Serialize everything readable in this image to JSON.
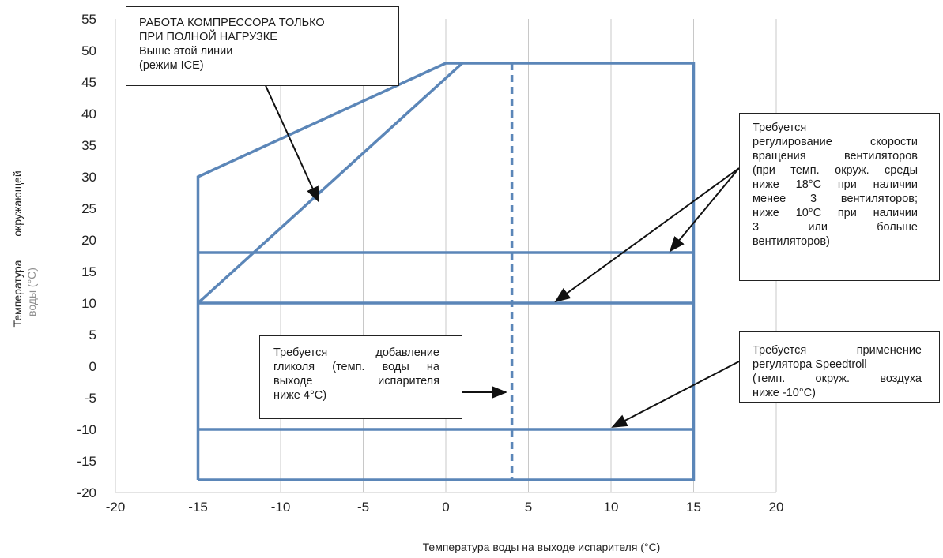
{
  "chart_data": {
    "type": "line",
    "xlabel": "Температура воды на выходе испарителя (°C)",
    "ylabel_lines": [
      "окружающей",
      "Температура",
      "воды (°C)"
    ],
    "xlim": [
      -20,
      20
    ],
    "ylim": [
      -20,
      55
    ],
    "xticks": [
      -20,
      -15,
      -10,
      -5,
      0,
      5,
      10,
      15,
      20
    ],
    "yticks": [
      55,
      50,
      45,
      40,
      35,
      30,
      25,
      20,
      15,
      10,
      5,
      0,
      -5,
      -10,
      -15,
      -20
    ],
    "series": [
      {
        "points": [
          [
            -15,
            -18
          ],
          [
            -15,
            30
          ],
          [
            0,
            48
          ],
          [
            15,
            48
          ],
          [
            15,
            -18
          ],
          [
            -15,
            -18
          ]
        ],
        "style": "solid"
      },
      {
        "points": [
          [
            -15,
            10
          ],
          [
            1,
            48
          ]
        ],
        "style": "solid"
      },
      {
        "points": [
          [
            -15,
            18
          ],
          [
            15,
            18
          ]
        ],
        "style": "solid"
      },
      {
        "points": [
          [
            -15,
            10
          ],
          [
            15,
            10
          ]
        ],
        "style": "solid"
      },
      {
        "points": [
          [
            -15,
            -10
          ],
          [
            15,
            -10
          ]
        ],
        "style": "solid"
      },
      {
        "points": [
          [
            4,
            48
          ],
          [
            4,
            -18
          ]
        ],
        "style": "dashed"
      }
    ],
    "annotations": [
      {
        "lines": [
          "РАБОТА КОМПРЕССОРА ТОЛЬКО",
          "ПРИ ПОЛНОЙ НАГРУЗКЕ",
          "Выше этой линии",
          "(режим ICE)"
        ]
      },
      {
        "lines": [
          "Требуется",
          "регулирование скорости",
          "вращения вентиляторов",
          "(при темп. окруж. среды",
          "ниже 18°C при наличии",
          "менее 3 вентиляторов;",
          "ниже 10°C при наличии",
          "3 или больше",
          "вентиляторов)"
        ]
      },
      {
        "lines": [
          "Требуется добавление",
          "гликоля (темп. воды на",
          "выходе испарителя",
          "ниже 4°C)"
        ]
      },
      {
        "lines": [
          "Требуется применение",
          "регулятора Speedtroll",
          "(темп. окруж. воздуха",
          "ниже -10°C)"
        ]
      }
    ],
    "colors": {
      "line": "#5b86b8",
      "text": "#222222"
    },
    "grid": "vertical-only"
  }
}
